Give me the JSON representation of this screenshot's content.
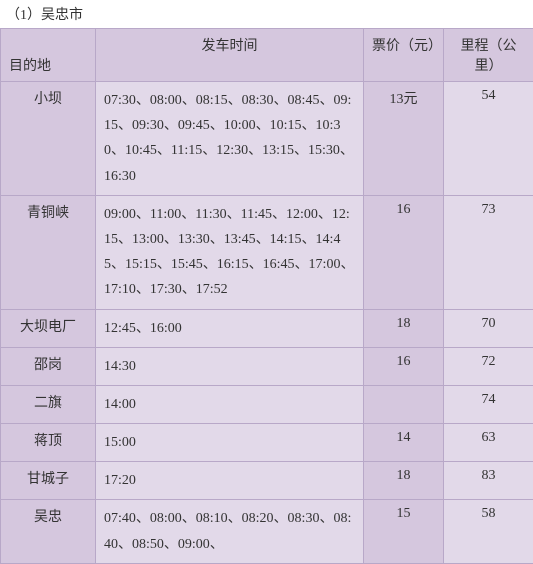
{
  "title": "（1）吴忠市",
  "headers": {
    "destination": "目的地",
    "departure": "发车时间",
    "price": "票价（元）",
    "distance": "里程（公里）"
  },
  "rows": [
    {
      "destination": "小坝",
      "times": "07:30、08:00、08:15、08:30、08:45、09:15、09:30、09:45、10:00、10:15、10:30、10:45、11:15、12:30、13:15、15:30、16:30",
      "price": "13元",
      "distance": "54"
    },
    {
      "destination": "青铜峡",
      "times": "09:00、11:00、11:30、11:45、12:00、12:15、13:00、13:30、13:45、14:15、14:45、15:15、15:45、16:15、16:45、17:00、17:10、17:30、17:52",
      "price": "16",
      "distance": "73"
    },
    {
      "destination": "大坝电厂",
      "times": "12:45、16:00",
      "price": "18",
      "distance": "70"
    },
    {
      "destination": "邵岗",
      "times": "14:30",
      "price": "16",
      "distance": "72"
    },
    {
      "destination": "二旗",
      "times": "14:00",
      "price": "",
      "distance": "74"
    },
    {
      "destination": "蒋顶",
      "times": "15:00",
      "price": "14",
      "distance": "63"
    },
    {
      "destination": "甘城子",
      "times": "17:20",
      "price": "18",
      "distance": "83"
    },
    {
      "destination": "吴忠",
      "times": "07:40、08:00、08:10、08:20、08:30、08:40、08:50、09:00、",
      "price": "15",
      "distance": "58"
    }
  ]
}
